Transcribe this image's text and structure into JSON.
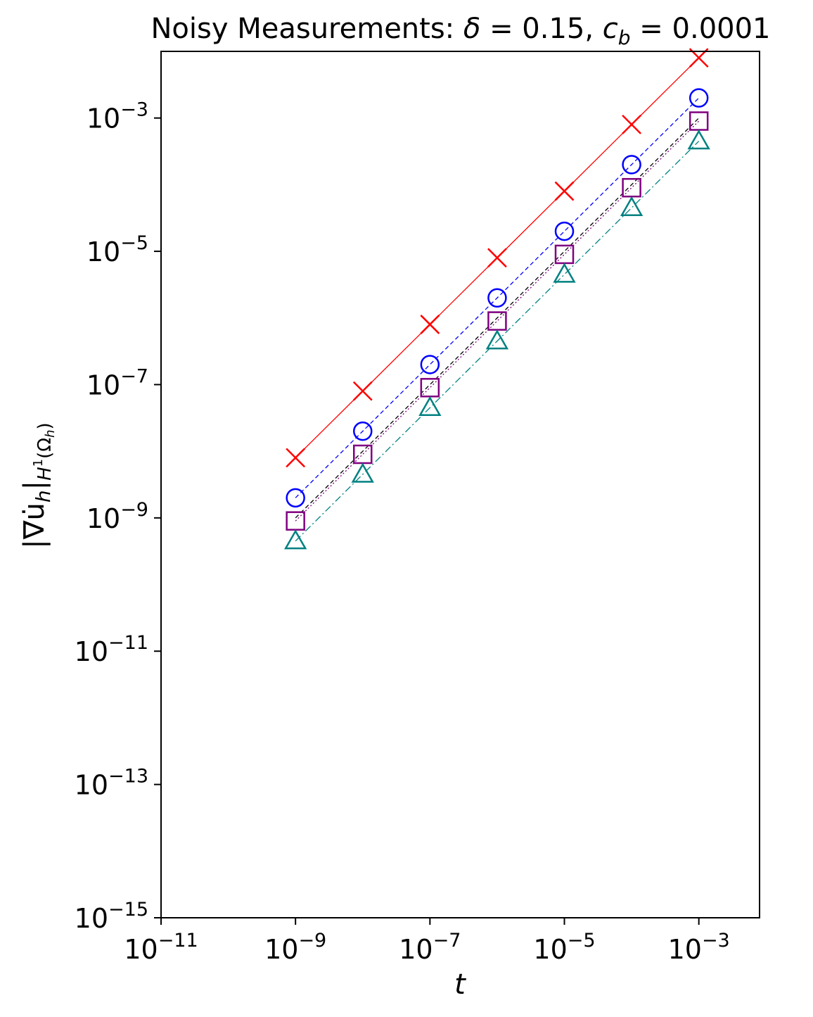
{
  "chart_data": {
    "type": "scatter",
    "title": "Noisy Measurements: δ = 0.15, c_b = 0.0001",
    "title_parts": {
      "prefix": "Noisy Measurements: ",
      "delta_symbol": "δ",
      "delta_value": " = 0.15, ",
      "cb_symbol": "c",
      "cb_subscript": "b",
      "cb_value": " = 0.0001"
    },
    "xlabel": "t",
    "ylabel": "|∇u̇h|H1(Ωh)",
    "ylabel_parts": {
      "main": "|∇u̇",
      "sub_h": "h",
      "bar": "|",
      "sub_norm": "H",
      "sup_norm": "1",
      "sub_norm2": "(Ω",
      "sub_norm3": "h",
      "sub_norm4": ")"
    },
    "x_scale": "log",
    "y_scale": "log",
    "xlim": [
      1e-11,
      0.008
    ],
    "ylim": [
      1e-15,
      0.01
    ],
    "x_ticks": [
      {
        "value": 1e-11,
        "base": "10",
        "exp": "−11"
      },
      {
        "value": 1e-09,
        "base": "10",
        "exp": "−9"
      },
      {
        "value": 1e-07,
        "base": "10",
        "exp": "−7"
      },
      {
        "value": 1e-05,
        "base": "10",
        "exp": "−5"
      },
      {
        "value": 0.001,
        "base": "10",
        "exp": "−3"
      }
    ],
    "y_ticks": [
      {
        "value": 1e-15,
        "base": "10",
        "exp": "−15"
      },
      {
        "value": 1e-13,
        "base": "10",
        "exp": "−13"
      },
      {
        "value": 1e-11,
        "base": "10",
        "exp": "−11"
      },
      {
        "value": 1e-09,
        "base": "10",
        "exp": "−9"
      },
      {
        "value": 1e-07,
        "base": "10",
        "exp": "−7"
      },
      {
        "value": 1e-05,
        "base": "10",
        "exp": "−5"
      },
      {
        "value": 0.001,
        "base": "10",
        "exp": "−3"
      }
    ],
    "grid": false,
    "legend": "none",
    "x": [
      1e-09,
      1e-08,
      1e-07,
      1e-06,
      1e-05,
      0.0001,
      0.001
    ],
    "series": [
      {
        "marker": "x",
        "color": "#ff0000",
        "linestyle": "solid",
        "values": [
          8e-09,
          8e-08,
          8e-07,
          8e-06,
          8e-05,
          0.0008,
          0.008
        ]
      },
      {
        "marker": "circle",
        "color": "#0000ff",
        "linestyle": "dashed",
        "values": [
          2e-09,
          2e-08,
          2e-07,
          2e-06,
          2e-05,
          0.0002,
          0.002
        ]
      },
      {
        "marker": "none",
        "color": "#000000",
        "linestyle": "dashed",
        "values": [
          1e-09,
          1e-08,
          1e-07,
          1e-06,
          1e-05,
          0.0001,
          0.001
        ]
      },
      {
        "marker": "square",
        "color": "#800080",
        "linestyle": "dotted",
        "values": [
          9e-10,
          9e-09,
          9e-08,
          9e-07,
          9e-06,
          9e-05,
          0.0009
        ]
      },
      {
        "marker": "triangle",
        "color": "#008080",
        "linestyle": "dashdot",
        "values": [
          4.5e-10,
          4.5e-09,
          4.5e-08,
          4.5e-07,
          4.5e-06,
          4.5e-05,
          0.00045
        ]
      }
    ]
  }
}
